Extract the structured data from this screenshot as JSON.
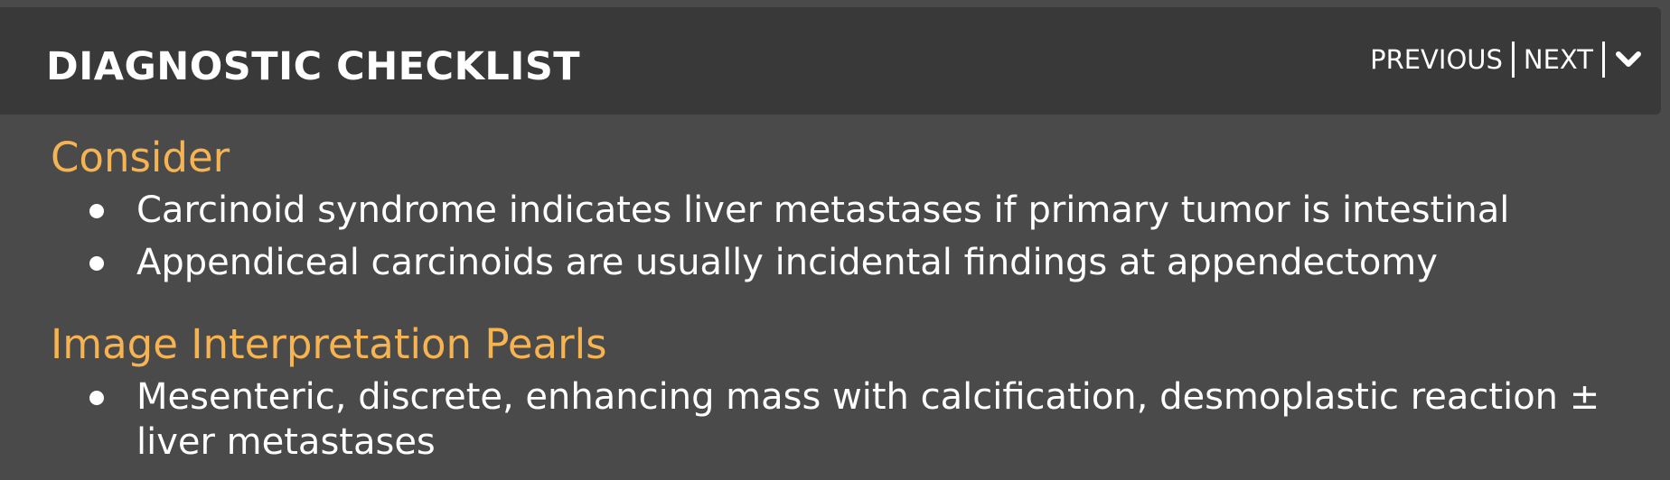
{
  "header": {
    "title": "DIAGNOSTIC CHECKLIST",
    "previous_label": "PREVIOUS",
    "next_label": "NEXT",
    "toggle_icon": "chevron-down-icon"
  },
  "sections": [
    {
      "heading": "Consider",
      "items": [
        "Carcinoid syndrome indicates liver metastases if primary tumor is intestinal",
        "Appendiceal carcinoids are usually incidental findings at appendectomy"
      ]
    },
    {
      "heading": "Image Interpretation Pearls",
      "items": [
        "Mesenteric, discrete, enhancing mass with calcification, desmoplastic reaction ± liver metastases"
      ]
    }
  ],
  "colors": {
    "background": "#4a4a4a",
    "header_background": "#393939",
    "heading_accent": "#f6b352",
    "text": "#ffffff"
  }
}
